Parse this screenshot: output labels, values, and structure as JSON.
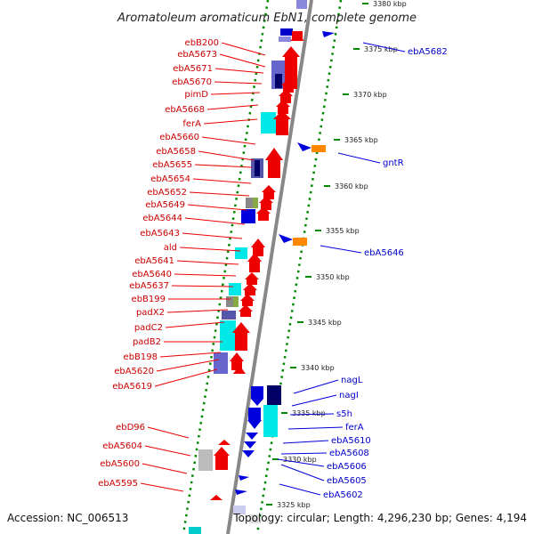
{
  "title": "Aromatoleum aromaticum EbN1, complete genome",
  "accession": "Accession: NC_006513",
  "topology": "Topology: circular; Length: 4,296,230 bp; Genes: 4,194",
  "colors": {
    "forward_gene": "#ee0000",
    "reverse_gene": "#0000dd",
    "orange_gene": "#ff8800",
    "backbone": "#888888",
    "tick": "#008800",
    "cyan_block": "#00e8e8",
    "purple_block": "#6666cc",
    "navy_block": "#000066"
  },
  "kbp_labels": [
    "3380 kbp",
    "3375 kbp",
    "3370 kbp",
    "3365 kbp",
    "3360 kbp",
    "3355 kbp",
    "3350 kbp",
    "3345 kbp",
    "3340 kbp",
    "3335 kbp",
    "3330 kbp",
    "3325 kbp"
  ],
  "left_genes": [
    "ebB200",
    "ebA5673",
    "ebA5671",
    "ebA5670",
    "pimD",
    "ebA5668",
    "ferA",
    "ebA5660",
    "ebA5658",
    "ebA5655",
    "ebA5654",
    "ebA5652",
    "ebA5649",
    "ebA5644",
    "ebA5643",
    "ald",
    "ebA5641",
    "ebA5640",
    "ebA5637",
    "ebB199",
    "padX2",
    "padC2",
    "padB2",
    "ebB198",
    "ebA5620",
    "ebA5619",
    "ebD96",
    "ebA5604",
    "ebA5600",
    "ebA5595"
  ],
  "right_genes": [
    "ebA5682",
    "gntR",
    "ebA5646",
    "nagL",
    "nagI",
    "s5h",
    "ferA",
    "ebA5610",
    "ebA5608",
    "ebA5606",
    "ebA5605",
    "ebA5602"
  ]
}
